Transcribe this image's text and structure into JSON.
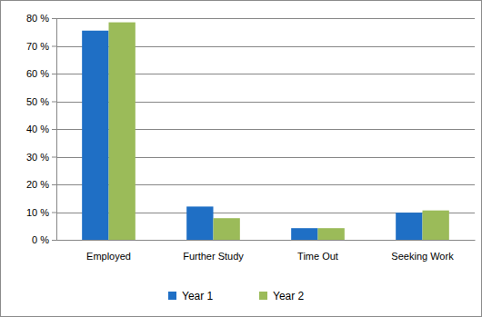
{
  "chart_data": {
    "type": "bar",
    "categories": [
      "Employed",
      "Further Study",
      "Time Out",
      "Seeking Work"
    ],
    "series": [
      {
        "name": "Year 1",
        "color": "#1f6fc5",
        "values": [
          75.5,
          12,
          4.2,
          9.8
        ]
      },
      {
        "name": "Year 2",
        "color": "#9bbb59",
        "values": [
          78.5,
          7.8,
          4.2,
          10.6
        ]
      }
    ],
    "ylim": [
      0,
      80
    ],
    "yticks": [
      {
        "value": 0,
        "label": "0 %"
      },
      {
        "value": 10,
        "label": "10 %"
      },
      {
        "value": 20,
        "label": "20 %"
      },
      {
        "value": 30,
        "label": "30 %"
      },
      {
        "value": 40,
        "label": "40 %"
      },
      {
        "value": 50,
        "label": "50 %"
      },
      {
        "value": 60,
        "label": "60 %"
      },
      {
        "value": 70,
        "label": "70 %"
      },
      {
        "value": 80,
        "label": "80 %"
      }
    ],
    "grid": true,
    "legend": "bottom"
  }
}
